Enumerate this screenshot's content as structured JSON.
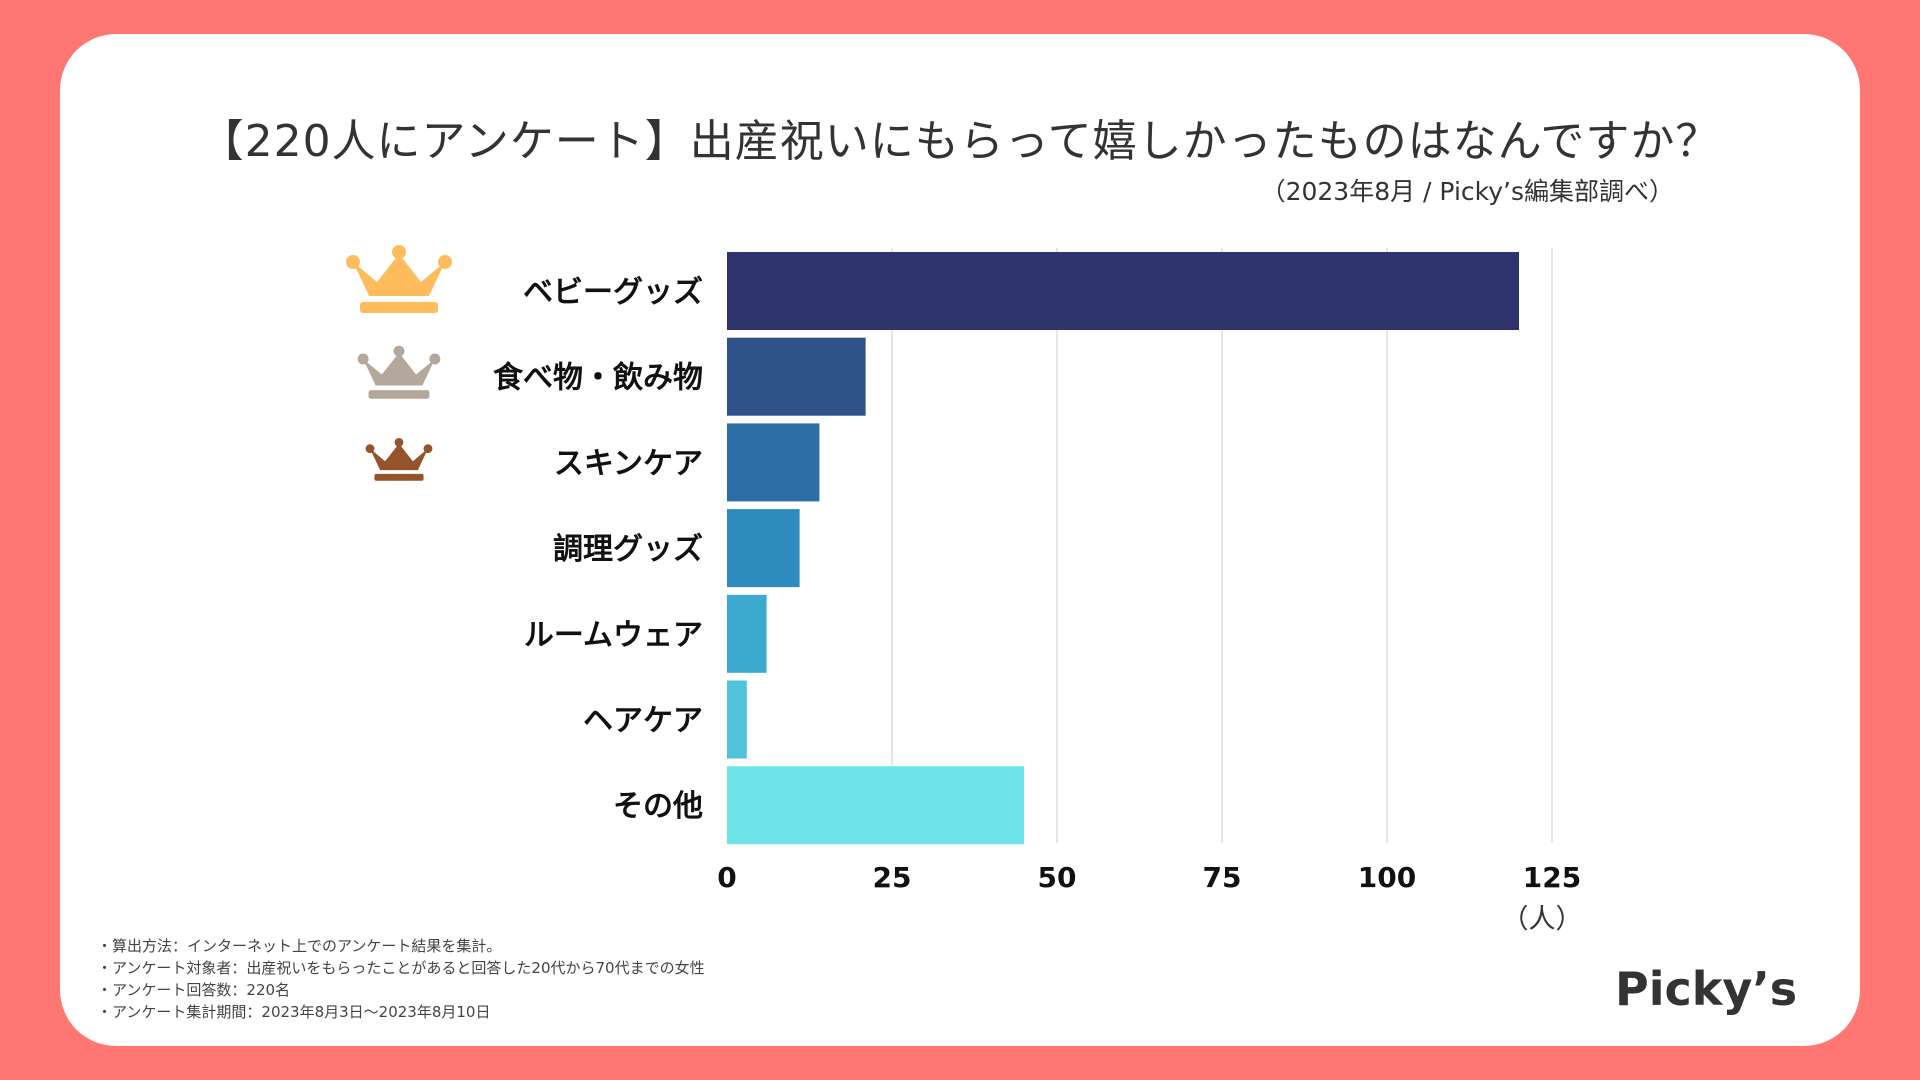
{
  "header": {
    "title": "【220人にアンケート】出産祝いにもらって嬉しかったものはなんですか？",
    "subtitle": "（2023年8月 / Picky’s編集部調べ）"
  },
  "chart_data": {
    "type": "bar",
    "orientation": "horizontal",
    "categories": [
      "ベビーグッズ",
      "食べ物・飲み物",
      "スキンケア",
      "調理グッズ",
      "ルームウェア",
      "ヘアケア",
      "その他"
    ],
    "values": [
      120,
      21,
      14,
      11,
      6,
      3,
      45
    ],
    "bar_colors": [
      "#2F336B",
      "#2F5189",
      "#2D6EA6",
      "#2E8BBE",
      "#3CA9CF",
      "#4EC3D9",
      "#6DE4E8"
    ],
    "xlim": [
      0,
      125
    ],
    "xticks": [
      "0",
      "25",
      "50",
      "75",
      "100",
      "125"
    ],
    "xlabel": "（人）",
    "ylabel": "",
    "grid": true,
    "ranks": [
      {
        "rank": 1,
        "icon": "gold-crown-icon",
        "color": "#FFBC5C"
      },
      {
        "rank": 2,
        "icon": "silver-crown-icon",
        "color": "#B3A89B"
      },
      {
        "rank": 3,
        "icon": "bronze-crown-icon",
        "color": "#96522A"
      }
    ]
  },
  "footnotes": [
    "・算出方法：インターネット上でのアンケート結果を集計。",
    "・アンケート対象者：出産祝いをもらったことがあると回答した20代から70代までの女性",
    "・アンケート回答数：220名",
    "・アンケート集計期間：2023年8月3日〜2023年8月10日"
  ],
  "brand": {
    "logo_text": "Picky’s"
  }
}
